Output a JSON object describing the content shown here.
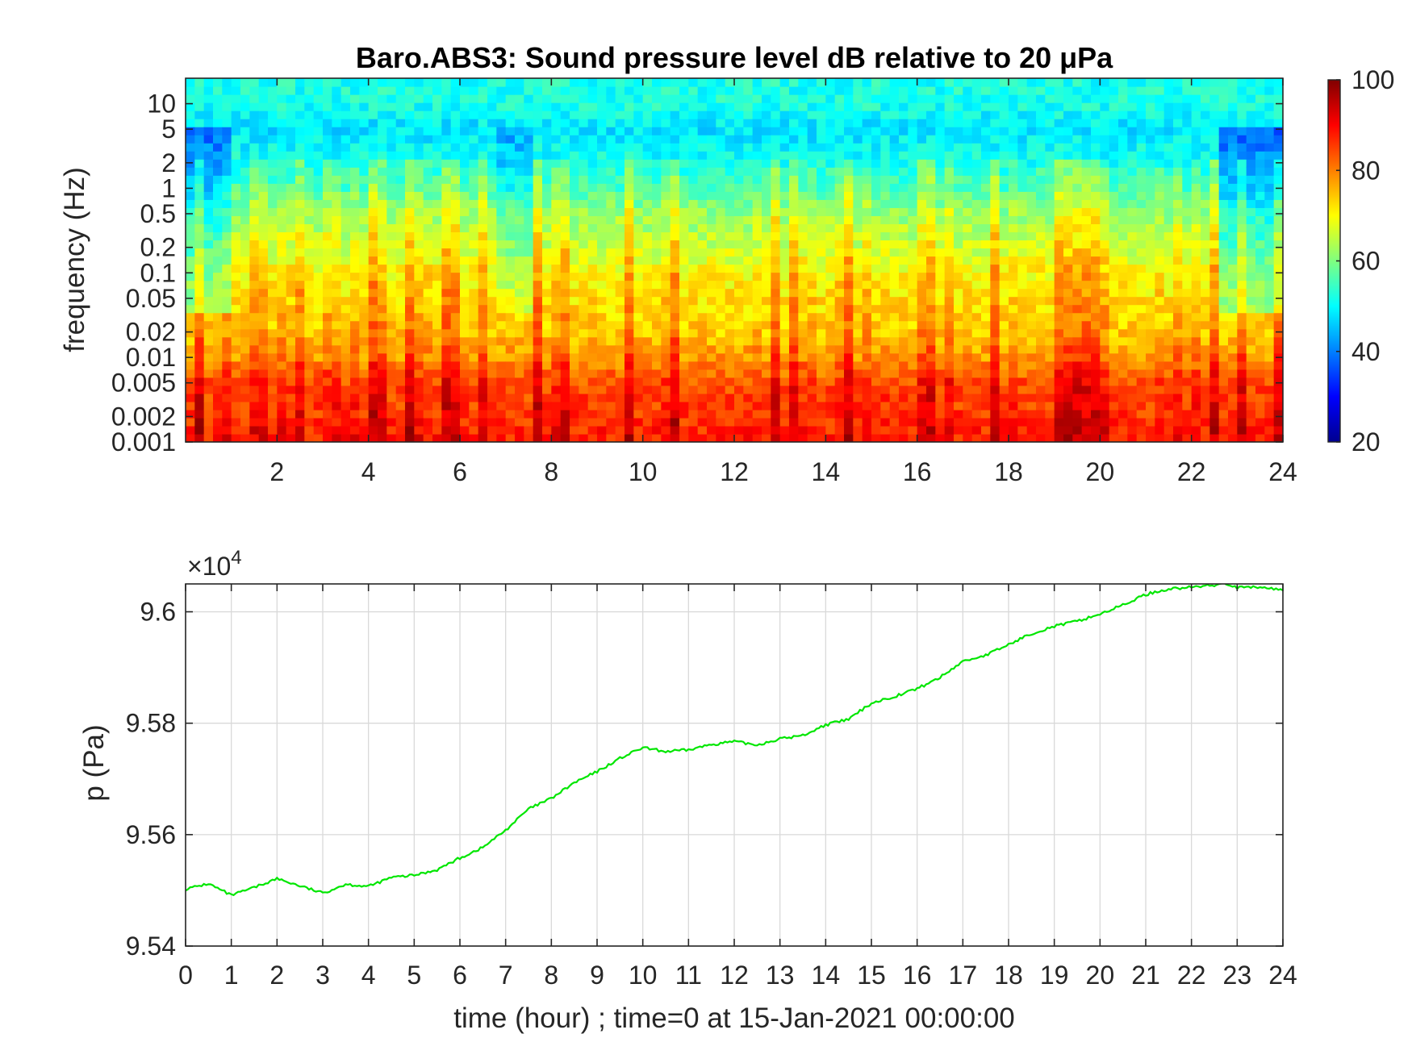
{
  "chart_data": [
    {
      "type": "heatmap",
      "title": "Baro.ABS3: Sound pressure level dB relative to 20 μPa",
      "xlabel": "",
      "ylabel": "frequency (Hz)",
      "x_ticks": [
        "2",
        "4",
        "6",
        "8",
        "10",
        "12",
        "14",
        "16",
        "18",
        "20",
        "22",
        "24"
      ],
      "x_tick_values": [
        2,
        4,
        6,
        8,
        10,
        12,
        14,
        16,
        18,
        20,
        22,
        24
      ],
      "xlim": [
        0,
        24
      ],
      "y_scale": "log",
      "ylim": [
        0.001,
        20
      ],
      "y_ticks": [
        "0.001",
        "0.002",
        "0.005",
        "0.01",
        "0.02",
        "0.05",
        "0.1",
        "0.2",
        "0.5",
        "1",
        "2",
        "5",
        "10"
      ],
      "y_tick_values": [
        0.001,
        0.002,
        0.005,
        0.01,
        0.02,
        0.05,
        0.1,
        0.2,
        0.5,
        1,
        2,
        5,
        10
      ],
      "colormap": "jet",
      "colorbar": {
        "ticks": [
          "20",
          "40",
          "60",
          "80",
          "100"
        ],
        "range": [
          20,
          100
        ]
      },
      "value_profile": {
        "frequency_hz": [
          0.001,
          0.002,
          0.005,
          0.01,
          0.02,
          0.05,
          0.1,
          0.2,
          0.5,
          1,
          2,
          5,
          10,
          20
        ],
        "level_db": [
          88,
          86,
          84,
          78,
          74,
          72,
          70,
          66,
          62,
          56,
          52,
          48,
          52,
          52
        ]
      },
      "notes": "cone of influence: dark red at low frequency near t=0 and t=24"
    },
    {
      "type": "line",
      "xlabel": "time (hour) ; time=0 at 15-Jan-2021 00:00:00",
      "ylabel": "p (Pa)",
      "y_multiplier": "×10",
      "y_multiplier_exp": "4",
      "xlim": [
        0,
        24
      ],
      "ylim": [
        9.54,
        9.605
      ],
      "x_ticks": [
        "0",
        "1",
        "2",
        "3",
        "4",
        "5",
        "6",
        "7",
        "8",
        "9",
        "10",
        "11",
        "12",
        "13",
        "14",
        "15",
        "16",
        "17",
        "18",
        "19",
        "20",
        "21",
        "22",
        "23",
        "24"
      ],
      "y_ticks": [
        "9.54",
        "9.56",
        "9.58",
        "9.6"
      ],
      "y_tick_values": [
        9.54,
        9.56,
        9.58,
        9.6
      ],
      "grid": true,
      "series": [
        {
          "color": "#00e600",
          "x": [
            0,
            0.5,
            1,
            1.5,
            2,
            2.5,
            3,
            3.5,
            4,
            4.5,
            5,
            5.5,
            6,
            6.5,
            7,
            7.5,
            8,
            8.5,
            9,
            9.5,
            10,
            10.5,
            11,
            11.5,
            12,
            12.5,
            13,
            13.5,
            14,
            14.5,
            15,
            15.5,
            16,
            16.5,
            17,
            17.5,
            18,
            18.5,
            19,
            19.5,
            20,
            20.5,
            21,
            21.5,
            22,
            22.5,
            22.7,
            23,
            23.5,
            24
          ],
          "y": [
            9.5502,
            9.5512,
            9.5491,
            9.5505,
            9.5521,
            9.5508,
            9.5495,
            9.5511,
            9.5507,
            9.5523,
            9.5527,
            9.5537,
            9.5558,
            9.5577,
            9.5608,
            9.5646,
            9.5665,
            9.5693,
            9.5713,
            9.5737,
            9.5756,
            9.5749,
            9.5752,
            9.5762,
            9.5767,
            9.5761,
            9.5772,
            9.5778,
            9.5797,
            9.5807,
            9.5836,
            9.5848,
            9.5862,
            9.5882,
            9.5911,
            9.5922,
            9.5941,
            9.5961,
            9.5974,
            9.5983,
            9.5996,
            9.6012,
            9.6031,
            9.6041,
            9.6044,
            9.6048,
            9.6053,
            9.6043,
            9.6044,
            9.6039
          ]
        }
      ]
    }
  ]
}
